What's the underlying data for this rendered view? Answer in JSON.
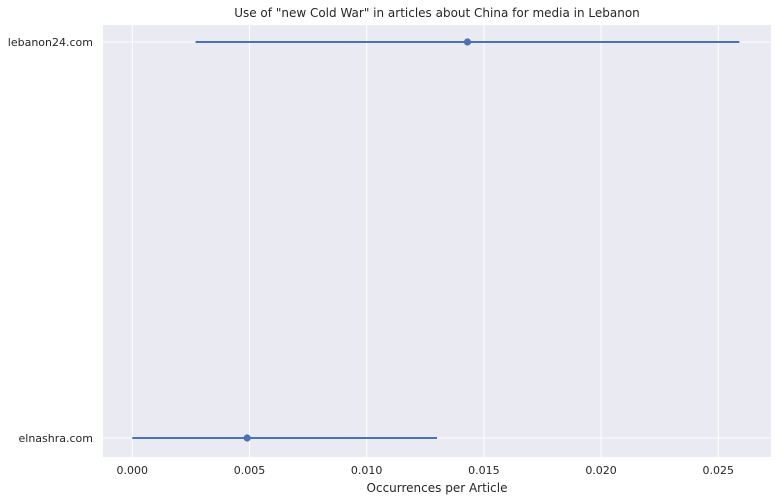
{
  "chart_data": {
    "type": "pointrange",
    "title": "Use of \"new Cold War\" in articles about China for media in Lebanon",
    "xlabel": "Occurrences per Article",
    "ylabel": "",
    "categories": [
      "lebanon24.com",
      "elnashra.com"
    ],
    "points": [
      {
        "category": "lebanon24.com",
        "value": 0.0143,
        "low": 0.0027,
        "high": 0.0259
      },
      {
        "category": "elnashra.com",
        "value": 0.0049,
        "low": 0.0,
        "high": 0.013
      }
    ],
    "xlim": [
      -0.00125,
      0.02725
    ],
    "xticks": [
      "0.000",
      "0.005",
      "0.010",
      "0.015",
      "0.020",
      "0.025"
    ],
    "xtick_values": [
      0,
      0.005,
      0.01,
      0.015,
      0.02,
      0.025
    ],
    "grid": true,
    "colors": {
      "background": "#eaeaf2",
      "grid": "#ffffff",
      "marker": "#4c72b0"
    }
  }
}
